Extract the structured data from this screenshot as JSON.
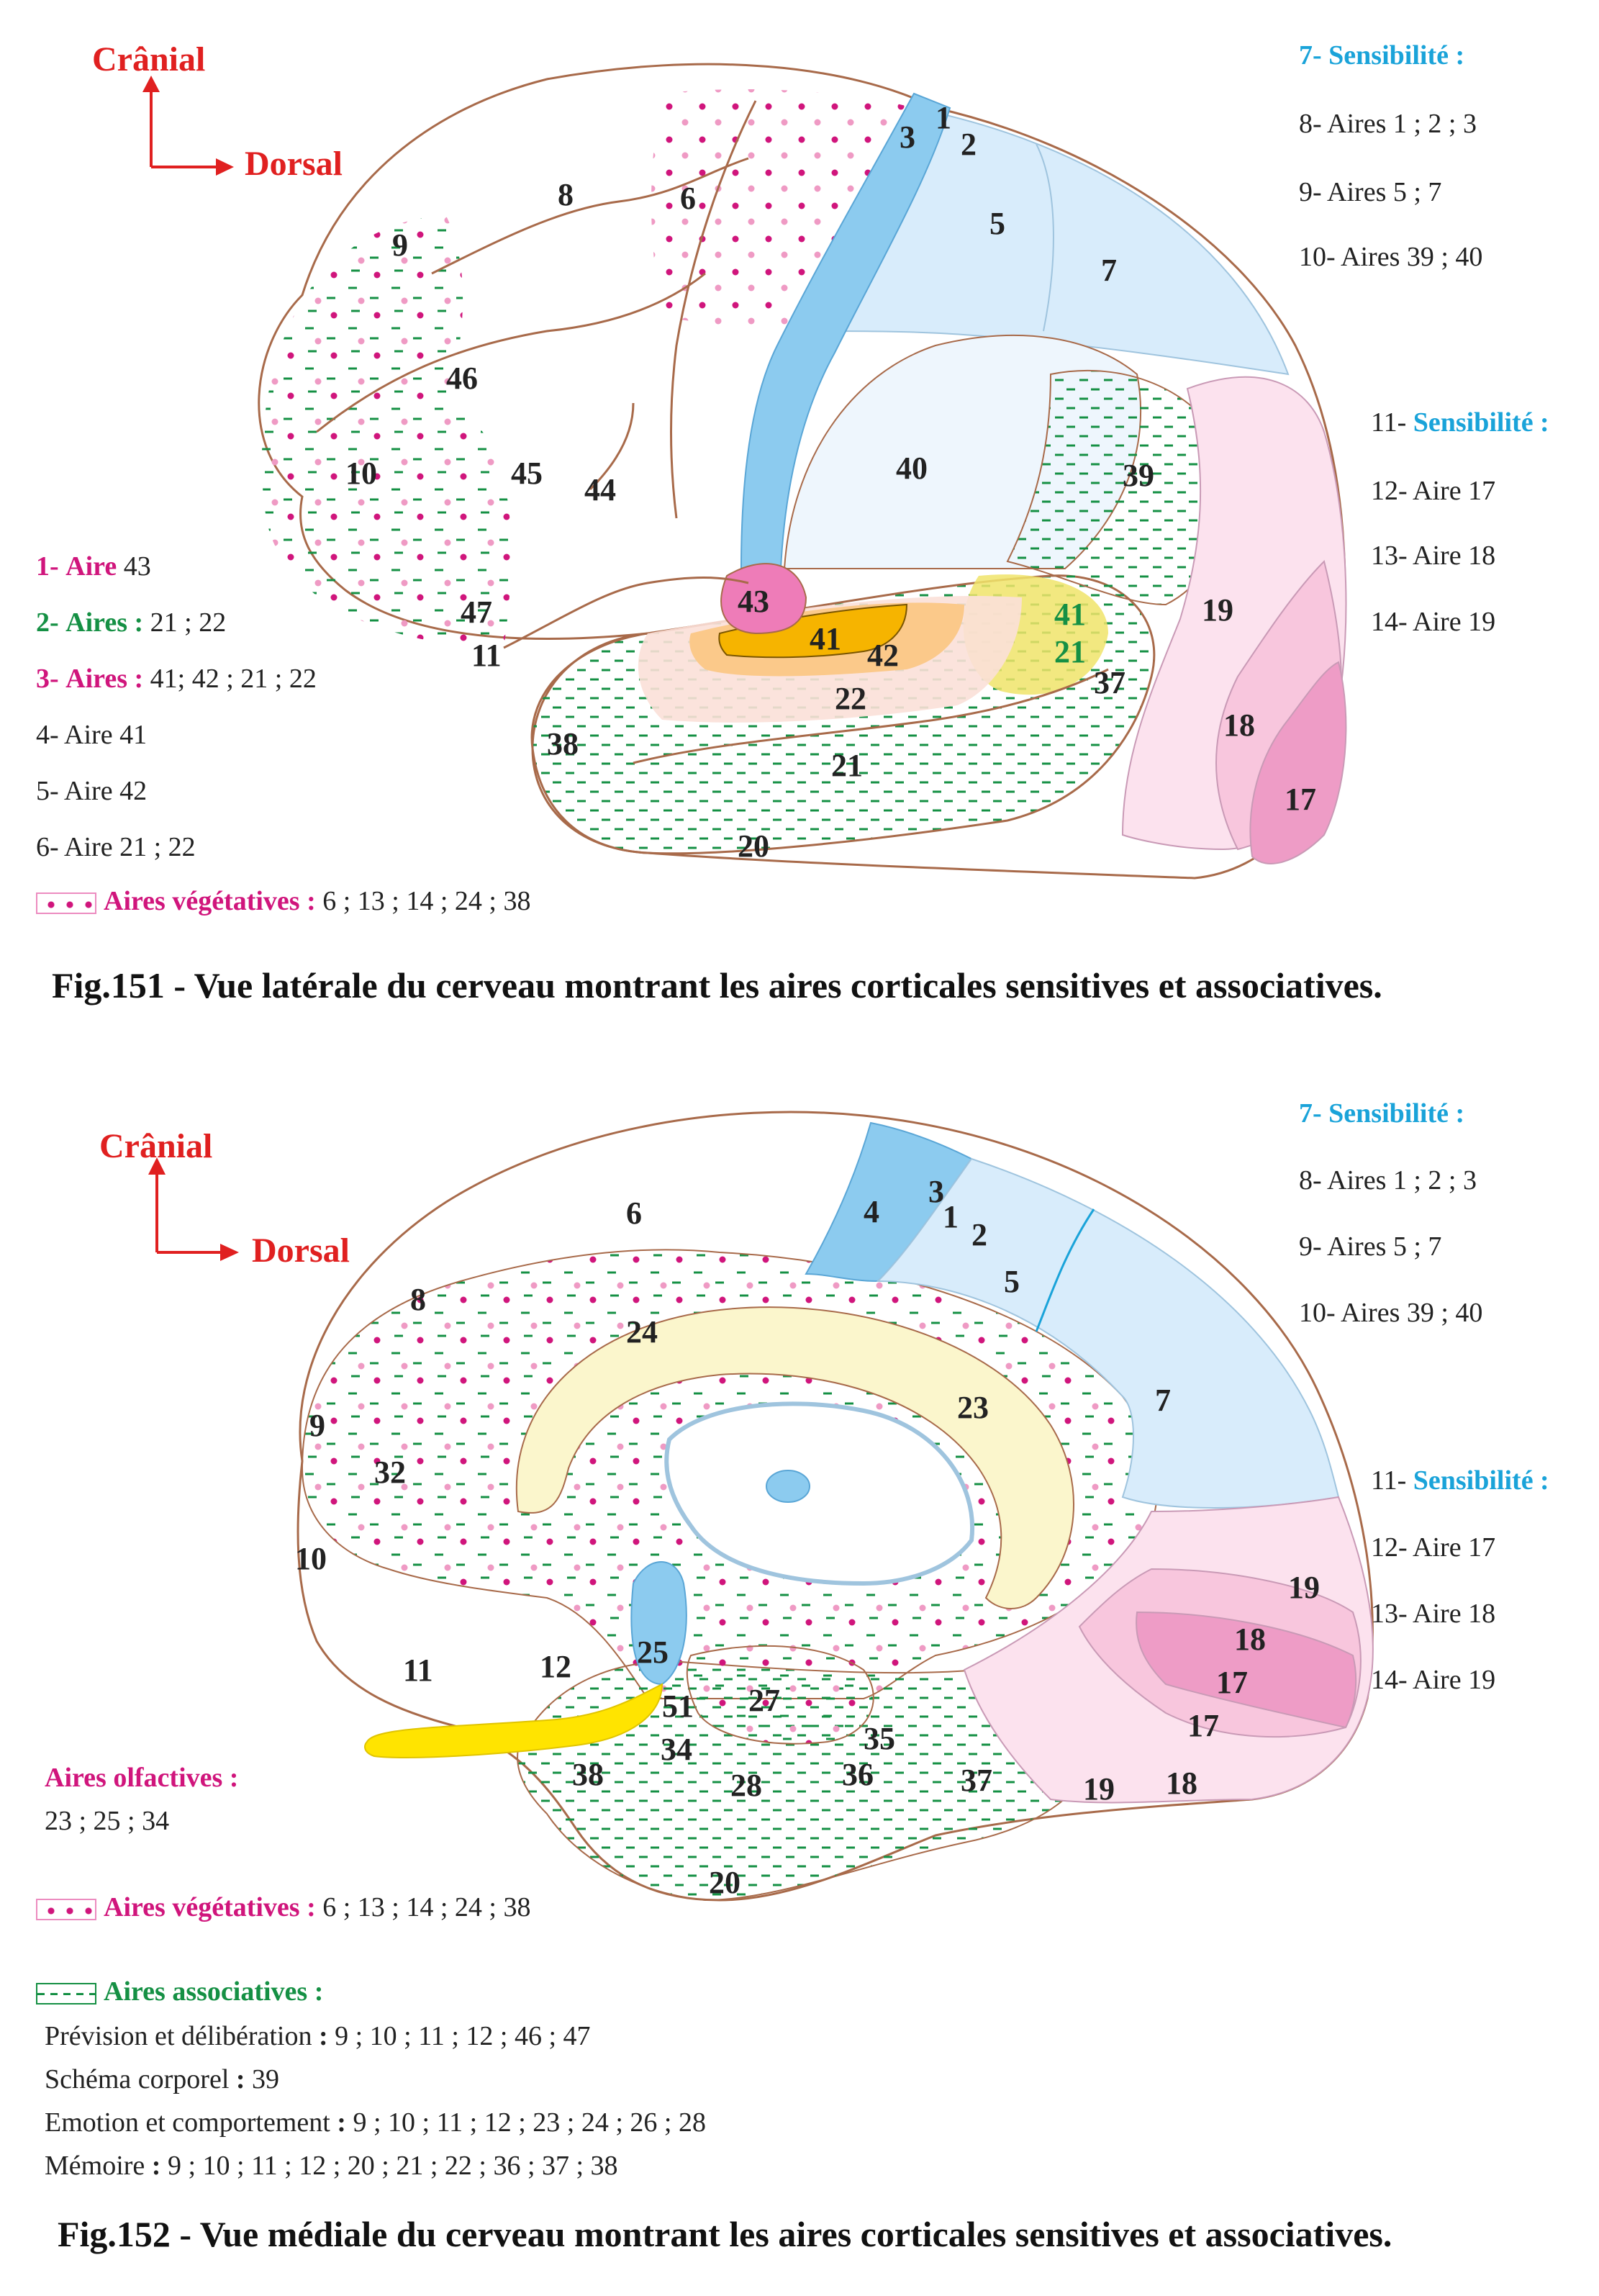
{
  "fig151": {
    "caption": "Fig.151 - Vue latérale du cerveau montrant les aires corticales sensitives et associatives.",
    "orientation": {
      "cranial": "Crânial",
      "dorsal": "Dorsal"
    },
    "legend_left": [
      {
        "num": "1-",
        "key": "Aire",
        "val": "43",
        "color": "#d0157c"
      },
      {
        "num": "2-",
        "key": "Aires :",
        "val": "21 ; 22",
        "color": "#159044"
      },
      {
        "num": "3-",
        "key": "Aires :",
        "val": "41; 42 ; 21 ; 22",
        "color": "#d0157c"
      },
      {
        "text": "4- Aire 41"
      },
      {
        "text": "5- Aire 42"
      },
      {
        "text": "6- Aire 21 ; 22"
      }
    ],
    "vegetative": {
      "label": "Aires végétatives :",
      "value": "6 ; 13 ; 14 ; 24 ; 38"
    },
    "legend_right": {
      "sens1": "7- Sensibilité :",
      "items1": [
        "8- Aires 1 ; 2 ; 3",
        "9- Aires 5 ; 7",
        "10- Aires 39 ; 40"
      ],
      "sens2_num": "11-",
      "sens2": "Sensibilité :",
      "items2": [
        "12- Aire 17",
        "13- Aire  18",
        "14- Aire  19"
      ]
    },
    "area_labels": [
      "1",
      "2",
      "3",
      "5",
      "6",
      "7",
      "8",
      "9",
      "46",
      "10",
      "45",
      "44",
      "40",
      "39",
      "43",
      "41",
      "42",
      "22",
      "21",
      "47",
      "11",
      "19",
      "18",
      "17",
      "37",
      "38",
      "20"
    ]
  },
  "fig152": {
    "caption": "Fig.152 - Vue médiale du cerveau montrant les aires corticales sensitives et associatives.",
    "orientation": {
      "cranial": "Crânial",
      "dorsal": "Dorsal"
    },
    "legend_right": {
      "sens1": "7- Sensibilité :",
      "items1": [
        "8- Aires 1 ; 2 ; 3",
        "9- Aires 5 ; 7",
        "10- Aires 39 ; 40"
      ],
      "sens2_num": "11-",
      "sens2": "Sensibilité :",
      "items2": [
        "12- Aire 17",
        "13- Aire  18",
        "14- Aire  19"
      ]
    },
    "olfactive": {
      "label": "Aires olfactives :",
      "value": "23 ; 25 ; 34"
    },
    "vegetative": {
      "label": "Aires végétatives :",
      "value": "6 ; 13 ; 14 ; 24 ; 38"
    },
    "associative": {
      "label": "Aires associatives :",
      "rows": [
        {
          "key": "Prévision et délibération",
          "val": "9 ; 10 ; 11 ; 12 ; 46 ; 47"
        },
        {
          "key": "Schéma corporel",
          "val": "39"
        },
        {
          "key": "Emotion et comportement",
          "val": "9 ; 10 ; 11 ; 12 ; 23 ; 24 ; 26 ; 28"
        },
        {
          "key": "Mémoire",
          "val": "9 ; 10 ; 11 ; 12 ; 20 ; 21 ; 22 ; 36 ; 37 ; 38"
        }
      ]
    },
    "area_labels": [
      "6",
      "4",
      "3",
      "1",
      "2",
      "5",
      "8",
      "24",
      "23",
      "7",
      "9",
      "32",
      "10",
      "25",
      "11",
      "12",
      "51",
      "27",
      "34",
      "35",
      "28",
      "36",
      "38",
      "37",
      "20",
      "19",
      "18",
      "17"
    ]
  },
  "colors": {
    "outline": "#a86a4a",
    "somato": "#8ccbef",
    "parietal": "#d8ecfb",
    "visual17": "#ee9cc6",
    "visual18": "#f8c6dd",
    "visual19": "#fce2ee",
    "dash": "#159044",
    "dot": "#d0157c",
    "dot_light": "#ef9ac4",
    "a41": "#f6b400",
    "a42": "#fbc98a",
    "a43": "#ee7cb8",
    "a2122": "#f0e46a",
    "callosum": "#fbf6cc",
    "olfactory": "#ffe400",
    "red": "#e02020"
  }
}
